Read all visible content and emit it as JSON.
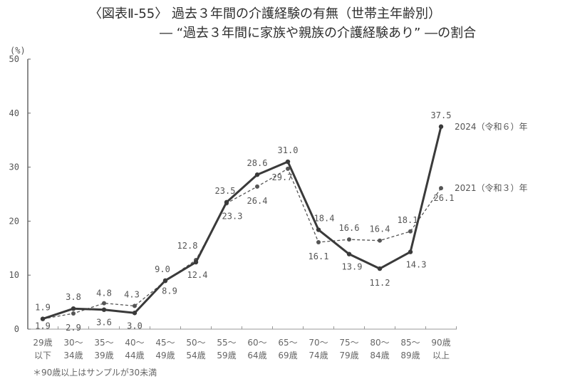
{
  "title": {
    "line1": "〈図表Ⅱ-55〉 過去３年間の介護経験の有無（世帯主年齢別）",
    "line2": "― “過去３年間に家族や親族の介護経験あり” ―の割合"
  },
  "note": "＊90歳以上はサンプルが30未満",
  "chart_data": {
    "type": "line",
    "title": "〈図表Ⅱ-55〉 過去３年間の介護経験の有無（世帯主年齢別） ― “過去３年間に家族や親族の介護経験あり” ―の割合",
    "xlabel": "",
    "ylabel": "(%)",
    "ylim": [
      0,
      50
    ],
    "yticks": [
      0,
      10,
      20,
      30,
      40,
      50
    ],
    "grid": false,
    "legend_position": "inline-right",
    "categories": [
      [
        "29歳",
        "以下"
      ],
      [
        "30～",
        "34歳"
      ],
      [
        "35～",
        "39歳"
      ],
      [
        "40～",
        "44歳"
      ],
      [
        "45～",
        "49歳"
      ],
      [
        "50～",
        "54歳"
      ],
      [
        "55～",
        "59歳"
      ],
      [
        "60～",
        "64歳"
      ],
      [
        "65～",
        "69歳"
      ],
      [
        "70～",
        "74歳"
      ],
      [
        "75～",
        "79歳"
      ],
      [
        "80～",
        "84歳"
      ],
      [
        "85～",
        "89歳"
      ],
      [
        "90歳",
        "以上"
      ]
    ],
    "series": [
      {
        "name": "2024（令和６）年",
        "style": "solid",
        "color": "#3a3a3a",
        "values": [
          1.9,
          3.8,
          3.6,
          3.0,
          9.0,
          12.4,
          23.5,
          28.6,
          31.0,
          18.4,
          13.9,
          11.2,
          14.3,
          37.5
        ],
        "labels": [
          "1.9",
          "3.8",
          "3.6",
          "3.0",
          "9.0",
          "12.4",
          "23.5",
          "28.6",
          "31.0",
          "18.4",
          "13.9",
          "11.2",
          "14.3",
          "37.5"
        ],
        "label_offsets": [
          [
            0,
            -12
          ],
          [
            0,
            -12
          ],
          [
            0,
            22
          ],
          [
            0,
            22
          ],
          [
            -4,
            -12
          ],
          [
            2,
            22
          ],
          [
            -2,
            -12
          ],
          [
            0,
            -12
          ],
          [
            0,
            -12
          ],
          [
            8,
            -12
          ],
          [
            4,
            22
          ],
          [
            0,
            24
          ],
          [
            8,
            22
          ],
          [
            0,
            -12
          ]
        ]
      },
      {
        "name": "2021（令和３）年",
        "style": "dashed",
        "color": "#555555",
        "values": [
          1.9,
          2.9,
          4.8,
          4.3,
          8.9,
          12.8,
          23.3,
          26.4,
          29.7,
          16.1,
          16.6,
          16.4,
          18.1,
          26.1
        ],
        "labels": [
          "1.9",
          "2.9",
          "4.8",
          "4.3",
          "8.9",
          "12.8",
          "23.3",
          "26.4",
          "29.7",
          "16.1",
          "16.6",
          "16.4",
          "18.1",
          "26.1"
        ],
        "label_offsets": [
          [
            0,
            14
          ],
          [
            0,
            24
          ],
          [
            0,
            -10
          ],
          [
            -4,
            -12
          ],
          [
            6,
            18
          ],
          [
            -12,
            -16
          ],
          [
            8,
            22
          ],
          [
            0,
            24
          ],
          [
            -8,
            16
          ],
          [
            0,
            24
          ],
          [
            0,
            -12
          ],
          [
            0,
            -12
          ],
          [
            -4,
            -12
          ],
          [
            4,
            18
          ]
        ]
      }
    ]
  }
}
